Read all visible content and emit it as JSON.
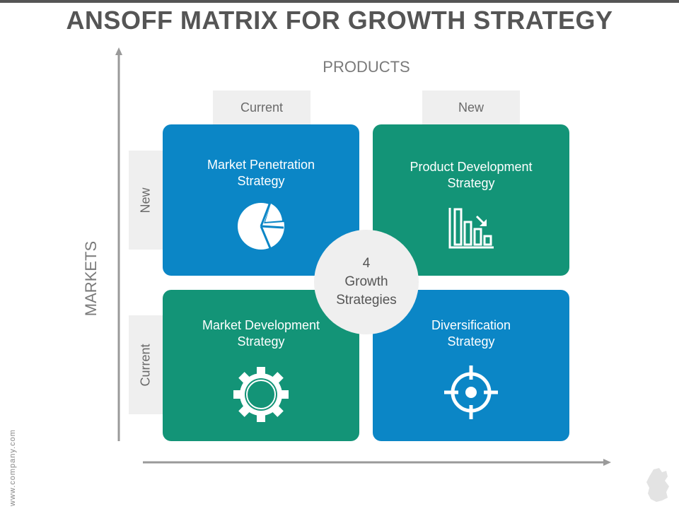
{
  "title": "ANSOFF MATRIX FOR GROWTH STRATEGY",
  "axes": {
    "products_label": "PRODUCTS",
    "markets_label": "MARKETS"
  },
  "products": {
    "current": "Current",
    "new": "New"
  },
  "markets": {
    "new": "New",
    "current": "Current"
  },
  "quadrants": [
    {
      "title": "Market Penetration\nStrategy",
      "icon": "pie-chart-icon",
      "color": "#0b86c6"
    },
    {
      "title": "Product Development\nStrategy",
      "icon": "bar-chart-icon",
      "color": "#139477"
    },
    {
      "title": "Market Development\nStrategy",
      "icon": "gear-icon",
      "color": "#139477"
    },
    {
      "title": "Diversification\nStrategy",
      "icon": "target-icon",
      "color": "#0b86c6"
    }
  ],
  "center": {
    "text": "4\nGrowth\nStrategies"
  },
  "watermark": "www.company.com"
}
